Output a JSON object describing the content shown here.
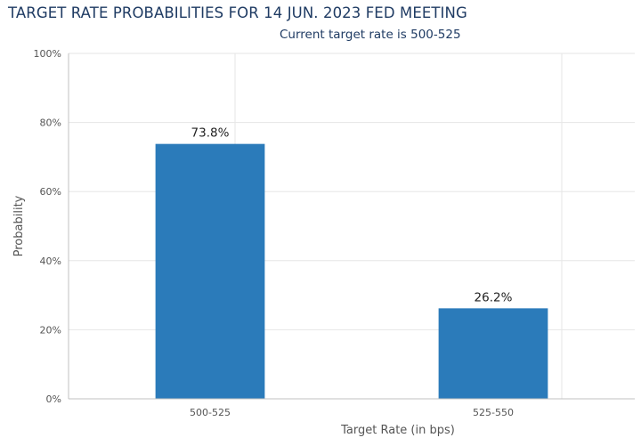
{
  "chart_data": {
    "type": "bar",
    "title": "TARGET RATE PROBABILITIES FOR 14 JUN. 2023 FED MEETING",
    "subtitle": "Current target rate is 500-525",
    "categories": [
      "500-525",
      "525-550"
    ],
    "values": [
      73.8,
      26.2
    ],
    "data_labels": [
      "73.8%",
      "26.2%"
    ],
    "xlabel": "Target Rate (in bps)",
    "ylabel": "Probability",
    "ylim": [
      0,
      100
    ],
    "yticks": [
      0,
      20,
      40,
      60,
      80,
      100
    ],
    "ytick_labels": [
      "0%",
      "20%",
      "40%",
      "60%",
      "80%",
      "100%"
    ],
    "grid": true,
    "legend": "none",
    "colors": {
      "bar": "#2b7bba",
      "grid": "#e6e6e6",
      "axis": "#c0c0c0",
      "title": "#1f3b63"
    }
  }
}
